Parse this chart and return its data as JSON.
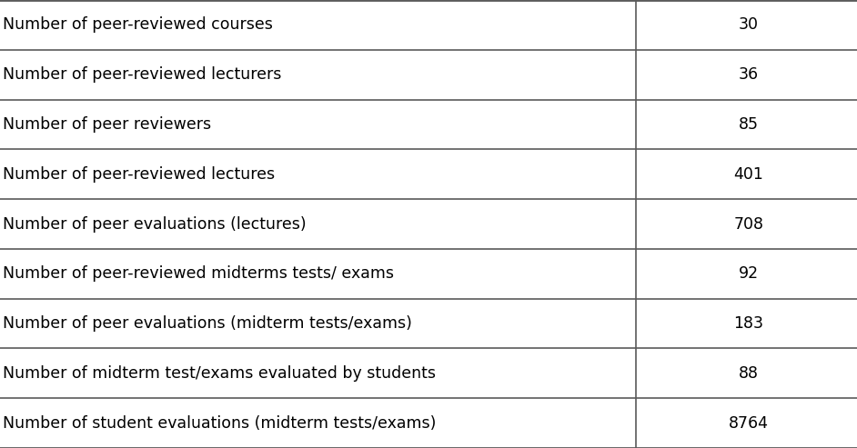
{
  "rows": [
    [
      "Number of peer-reviewed courses",
      "30"
    ],
    [
      "Number of peer-reviewed lecturers",
      "36"
    ],
    [
      "Number of peer reviewers",
      "85"
    ],
    [
      "Number of peer-reviewed lectures",
      "401"
    ],
    [
      "Number of peer evaluations (lectures)",
      "708"
    ],
    [
      "Number of peer-reviewed midterms tests/ exams",
      "92"
    ],
    [
      "Number of peer evaluations (midterm tests/exams)",
      "183"
    ],
    [
      "Number of midterm test/exams evaluated by students",
      "88"
    ],
    [
      "Number of student evaluations (midterm tests/exams)",
      "8764"
    ]
  ],
  "col_split": 0.74,
  "background_color": "#ffffff",
  "line_color": "#5a5a5a",
  "text_color": "#000000",
  "fontsize": 12.5
}
